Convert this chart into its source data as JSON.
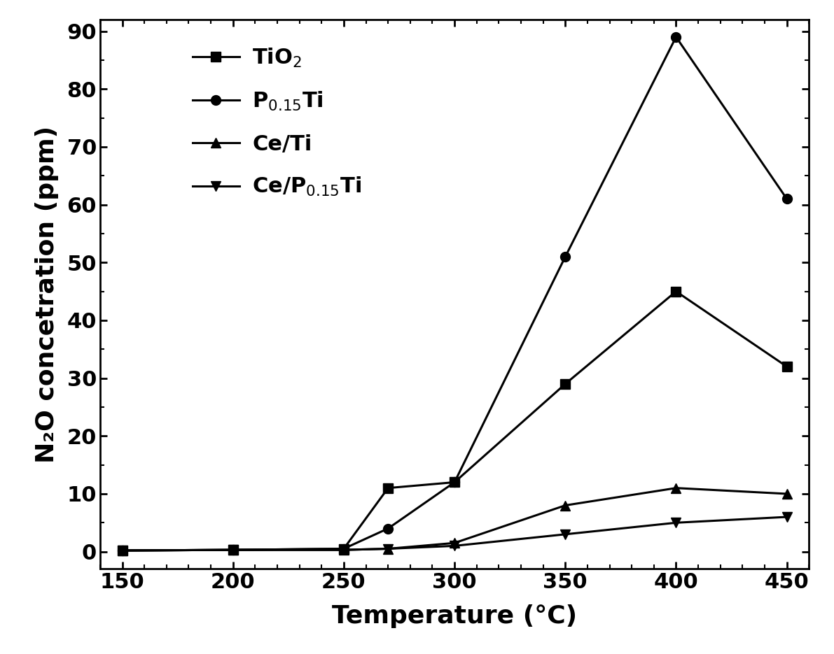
{
  "title": "",
  "xlabel": "Temperature (°C)",
  "ylabel": "N₂O concetration (ppm)",
  "xlim": [
    140,
    460
  ],
  "ylim": [
    -3,
    92
  ],
  "xticks": [
    150,
    200,
    250,
    300,
    350,
    400,
    450
  ],
  "yticks": [
    0,
    10,
    20,
    30,
    40,
    50,
    60,
    70,
    80,
    90
  ],
  "temperatures": [
    150,
    200,
    250,
    270,
    300,
    350,
    400,
    450
  ],
  "TiO2": [
    0.2,
    0.3,
    0.5,
    11.0,
    12.0,
    29.0,
    45.0,
    32.0
  ],
  "P0.15Ti": [
    0.2,
    0.3,
    0.5,
    4.0,
    12.0,
    51.0,
    89.0,
    61.0
  ],
  "CeTi": [
    0.2,
    0.3,
    0.3,
    0.5,
    1.5,
    8.0,
    11.0,
    10.0
  ],
  "CeP0.15Ti": [
    0.2,
    0.3,
    0.3,
    0.5,
    1.0,
    3.0,
    5.0,
    6.0
  ],
  "line_color": "#000000",
  "background_color": "#ffffff",
  "legend_labels": [
    "TiO$_2$",
    "P$_{0.15}$Ti",
    "Ce/Ti",
    "Ce/P$_{0.15}$Ti"
  ],
  "markers": [
    "s",
    "o",
    "^",
    "v"
  ],
  "markersize": 10,
  "linewidth": 2.2,
  "label_fontsize": 26,
  "tick_fontsize": 22,
  "legend_fontsize": 22
}
